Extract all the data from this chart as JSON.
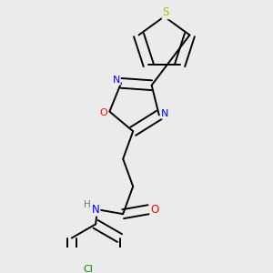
{
  "background_color": "#ebebeb",
  "bond_color": "#000000",
  "atom_colors": {
    "S": "#b8b800",
    "N": "#0000ff",
    "O": "#ff0000",
    "Cl": "#008800",
    "C": "#000000",
    "H": "#4a8a8a"
  },
  "bond_lw": 1.4,
  "font_size": 8.5
}
